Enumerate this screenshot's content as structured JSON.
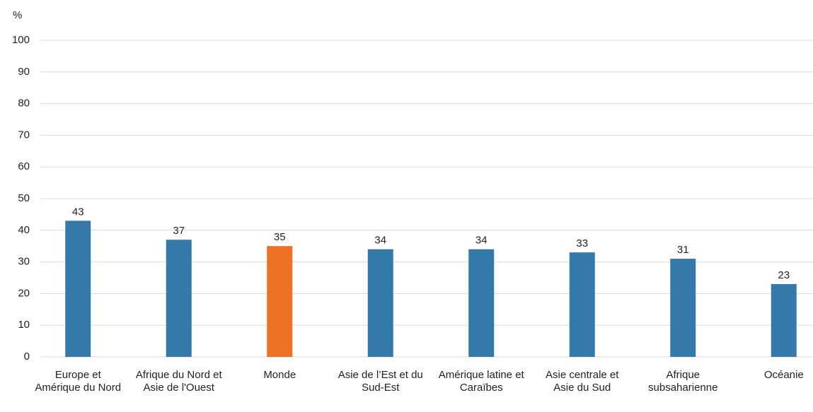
{
  "chart_data": {
    "type": "bar",
    "y_axis_label": "%",
    "categories": [
      "Europe et Amérique du Nord",
      "Afrique du Nord et Asie de l'Ouest",
      "Monde",
      "Asie de l’Est et du Sud-Est",
      "Amérique latine et Caraïbes",
      "Asie centrale et Asie du Sud",
      "Afrique subsaharienne",
      "Océanie"
    ],
    "values": [
      43,
      37,
      35,
      34,
      34,
      33,
      31,
      23
    ],
    "colors": [
      "#337aaa",
      "#337aaa",
      "#ee7023",
      "#337aaa",
      "#337aaa",
      "#337aaa",
      "#337aaa",
      "#337aaa"
    ],
    "ylim": [
      0,
      100
    ],
    "yticks": [
      0,
      10,
      20,
      30,
      40,
      50,
      60,
      70,
      80,
      90,
      100
    ],
    "grid": true
  }
}
